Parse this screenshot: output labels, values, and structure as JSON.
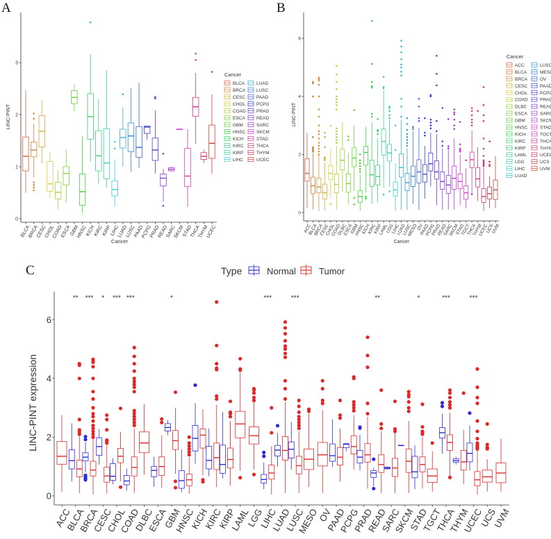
{
  "panels": {
    "a": "A",
    "b": "B",
    "c": "C"
  },
  "chart_data": [
    {
      "type": "boxplot",
      "panel": "A",
      "xlabel": "Cancer",
      "ylabel": "LINC-PINT",
      "ylim": [
        0,
        3.95
      ],
      "yticks": [
        0,
        1,
        2,
        3
      ],
      "grid": false,
      "legend": {
        "title": "Cancer",
        "placement": "right",
        "columns": 2
      },
      "palette": "hue",
      "stats_order": [
        "q1",
        "median",
        "q3",
        "whisker_low",
        "whisker_high"
      ],
      "categories": [
        "BLCA",
        "BRCA",
        "CESC",
        "CHOL",
        "COAD",
        "ESCA",
        "GBM",
        "HNSC",
        "KICH",
        "KIRC",
        "KIRP",
        "LIHC",
        "LUAD",
        "LUSC",
        "PAAD",
        "PCPG",
        "PRAD",
        "READ",
        "SARC",
        "SKCM",
        "STAD",
        "THCA",
        "THYM",
        "UCEC"
      ],
      "boxes": [
        [
          0.92,
          1.2,
          1.57,
          0.5,
          2.47
        ],
        [
          1.19,
          1.32,
          1.47,
          0.8,
          1.83
        ],
        [
          1.38,
          1.68,
          1.98,
          1.06,
          2.28
        ],
        [
          0.53,
          0.67,
          1.1,
          0.4,
          1.28
        ],
        [
          0.38,
          0.51,
          0.7,
          0.18,
          0.93
        ],
        [
          0.65,
          0.87,
          1.0,
          0.31,
          1.33
        ],
        [
          2.21,
          2.33,
          2.46,
          2.07,
          2.58
        ],
        [
          0.26,
          0.52,
          0.86,
          0.12,
          1.59
        ],
        [
          1.53,
          1.96,
          2.4,
          1.1,
          3.16
        ],
        [
          0.92,
          1.21,
          1.69,
          0.67,
          2.3
        ],
        [
          0.77,
          1.07,
          1.73,
          0.6,
          2.85
        ],
        [
          0.44,
          0.56,
          0.73,
          0.23,
          1.14
        ],
        [
          1.36,
          1.56,
          1.72,
          1.0,
          2.14
        ],
        [
          1.29,
          1.59,
          1.84,
          0.9,
          2.51
        ],
        [
          1.18,
          1.37,
          1.77,
          0.98,
          2.61
        ],
        [
          1.64,
          1.76,
          1.78,
          1.52,
          1.78
        ],
        [
          1.12,
          1.32,
          1.55,
          0.87,
          2.08
        ],
        [
          0.63,
          0.78,
          0.86,
          0.33,
          0.96
        ],
        [
          0.92,
          0.95,
          0.98,
          0.9,
          1.0
        ],
        [
          1.72,
          1.72,
          1.72,
          1.72,
          1.72
        ],
        [
          0.62,
          0.82,
          1.35,
          0.23,
          1.72
        ],
        [
          1.97,
          2.15,
          2.33,
          1.44,
          2.8
        ],
        [
          1.14,
          1.2,
          1.27,
          1.07,
          1.33
        ],
        [
          1.16,
          1.45,
          1.8,
          0.87,
          2.39
        ]
      ],
      "outliers": [
        [],
        [
          0.55,
          0.6,
          0.65,
          0.7,
          1.92,
          2.02
        ],
        [],
        [],
        [],
        [],
        [],
        [],
        [
          3.77
        ],
        [],
        [],
        [
          1.35,
          1.48
        ],
        [
          2.39
        ],
        [],
        [],
        [],
        [
          2.31,
          2.34
        ],
        [
          0.25,
          1.25
        ],
        [],
        [],
        [],
        [
          3.05,
          3.17
        ],
        [],
        [
          2.82
        ]
      ]
    },
    {
      "type": "boxplot",
      "panel": "B",
      "xlabel": "Cancer",
      "ylabel": "LINC-PINT",
      "ylim": [
        0,
        6.8
      ],
      "yticks": [
        0,
        2,
        4,
        6
      ],
      "grid": false,
      "legend": {
        "title": "Cancer",
        "placement": "right",
        "columns": 2
      },
      "palette": "hue",
      "stats_order": [
        "q1",
        "median",
        "q3",
        "whisker_low",
        "whisker_high"
      ],
      "categories": [
        "ACC",
        "BLCA",
        "BRCA",
        "CESC",
        "CHOL",
        "COAD",
        "DLBC",
        "ESCA",
        "GBM",
        "HNSC",
        "KICH",
        "KIRC",
        "KIRP",
        "LAML",
        "LGG",
        "LIHC",
        "LUAD",
        "LUSC",
        "MESO",
        "OV",
        "PAAD",
        "PCPG",
        "PRAD",
        "READ",
        "SARC",
        "SKCM",
        "STAD",
        "TGCT",
        "THCA",
        "THYM",
        "UCEC",
        "UCS",
        "UVM"
      ],
      "boxes": [
        [
          1.08,
          1.35,
          1.85,
          0.15,
          2.75
        ],
        [
          0.65,
          0.92,
          1.22,
          0.1,
          2.05
        ],
        [
          0.68,
          0.88,
          1.18,
          0.05,
          1.98
        ],
        [
          0.47,
          0.68,
          0.98,
          0.08,
          1.72
        ],
        [
          1.13,
          1.35,
          1.62,
          0.5,
          2.18
        ],
        [
          0.68,
          0.97,
          1.33,
          0.1,
          2.3
        ],
        [
          1.47,
          1.8,
          2.18,
          0.72,
          3.12
        ],
        [
          0.7,
          1.0,
          1.33,
          0.28,
          2.05
        ],
        [
          1.58,
          1.88,
          2.23,
          0.75,
          3.0
        ],
        [
          0.35,
          0.55,
          0.75,
          0.07,
          1.3
        ],
        [
          1.63,
          2.07,
          2.28,
          0.7,
          2.95
        ],
        [
          0.9,
          1.3,
          1.8,
          0.3,
          3.1
        ],
        [
          0.95,
          1.24,
          1.63,
          0.35,
          2.55
        ],
        [
          1.98,
          2.45,
          2.88,
          0.85,
          4.2
        ],
        [
          1.77,
          2.05,
          2.35,
          0.9,
          3.2
        ],
        [
          0.57,
          0.78,
          1.05,
          0.05,
          1.7
        ],
        [
          1.22,
          1.55,
          2.02,
          0.1,
          3.2
        ],
        [
          0.75,
          1.03,
          1.35,
          0.1,
          2.2
        ],
        [
          0.9,
          1.25,
          1.6,
          0.3,
          2.8
        ],
        [
          1.02,
          1.4,
          1.82,
          0.1,
          2.92
        ],
        [
          1.05,
          1.32,
          1.65,
          0.48,
          2.3
        ],
        [
          1.43,
          1.68,
          2.05,
          0.9,
          2.75
        ],
        [
          1.15,
          1.4,
          1.78,
          0.25,
          2.7
        ],
        [
          0.8,
          1.07,
          1.4,
          0.1,
          2.2
        ],
        [
          0.66,
          0.95,
          1.28,
          0.1,
          2.15
        ],
        [
          0.8,
          1.18,
          1.6,
          0.1,
          2.55
        ],
        [
          0.82,
          1.07,
          1.33,
          0.25,
          2.0
        ],
        [
          0.46,
          0.68,
          0.92,
          0.15,
          1.52
        ],
        [
          1.55,
          1.82,
          2.08,
          0.65,
          2.83
        ],
        [
          0.88,
          1.16,
          1.55,
          0.4,
          2.25
        ],
        [
          0.35,
          0.55,
          0.83,
          0.05,
          1.55
        ],
        [
          0.47,
          0.65,
          0.88,
          0.15,
          1.25
        ],
        [
          0.45,
          0.78,
          1.12,
          0.15,
          1.95
        ]
      ],
      "outliers": [
        [],
        [
          2.1,
          2.15,
          2.2,
          2.25,
          2.6,
          4.0,
          4.45,
          4.5
        ],
        [
          2.0,
          2.1,
          2.2,
          2.3,
          2.4,
          2.55,
          2.7,
          2.8,
          3.0,
          3.3,
          3.55,
          4.0,
          4.4,
          4.55,
          4.6,
          4.65
        ],
        [
          1.8,
          1.85,
          1.9,
          2.25,
          2.6,
          2.75
        ],
        [
          0.3,
          2.98
        ],
        [
          2.4,
          2.5,
          2.6,
          2.7,
          2.8,
          2.9,
          3.55,
          3.7,
          3.8,
          3.9,
          4.0,
          4.25,
          4.5,
          4.75,
          5.05
        ],
        [],
        [
          2.5,
          2.62
        ],
        [
          0.28,
          0.5,
          3.53
        ],
        [
          1.4,
          1.5,
          1.6,
          1.7,
          1.8,
          2.0
        ],
        [
          0.48,
          0.55
        ],
        [
          3.3,
          3.4,
          4.3,
          4.35,
          4.5,
          5.12,
          6.6
        ],
        [
          2.7,
          2.8,
          2.85,
          3.22
        ],
        [
          0.62,
          4.28,
          4.32,
          4.67
        ],
        [
          0.73,
          3.25,
          3.35,
          3.5,
          3.6,
          3.65
        ],
        [
          2.15,
          3.0
        ],
        [
          3.3,
          3.65,
          3.92,
          4.72,
          4.85,
          5.0,
          5.1,
          5.28,
          5.52,
          5.72,
          5.92
        ],
        [
          2.3,
          2.4,
          2.5,
          2.6,
          2.7,
          2.85,
          3.05,
          3.25
        ],
        [
          2.88,
          2.95
        ],
        [
          3.15,
          3.25,
          3.65,
          3.92
        ],
        [
          2.65,
          2.75,
          3.25
        ],
        [
          2.9,
          3.0,
          3.1,
          3.2,
          4.0,
          4.05
        ],
        [
          2.8,
          3.15,
          4.38,
          4.78,
          5.4
        ],
        [
          2.3,
          2.45,
          3.6
        ],
        [
          2.2,
          2.28,
          3.22
        ],
        [
          2.88,
          3.0,
          3.2,
          3.38,
          3.45,
          3.55
        ],
        [
          2.1,
          2.15,
          2.2,
          2.35,
          3.12
        ],
        [
          1.8
        ],
        [
          0.63,
          3.0,
          3.1,
          3.2,
          3.35,
          3.5,
          3.6
        ],
        [
          3.5
        ],
        [
          1.6,
          1.65,
          1.7,
          1.75,
          1.8,
          1.95,
          2.2,
          2.55,
          3.15,
          3.35,
          3.7,
          4.32
        ],
        [
          1.6,
          1.65,
          1.75,
          2.45
        ],
        []
      ]
    },
    {
      "type": "boxplot",
      "panel": "C",
      "xlabel": "",
      "ylabel": "LINC-PINT expression",
      "ylim": [
        0,
        6.8
      ],
      "yticks": [
        0,
        2,
        4,
        6
      ],
      "grid": false,
      "legend": {
        "title": "Type",
        "placement": "top",
        "items": [
          "Normal",
          "Tumor"
        ]
      },
      "colors": {
        "Normal": "#2b2bd6",
        "Tumor": "#e02828"
      },
      "categories": [
        "ACC",
        "BLCA",
        "BRCA",
        "CESC",
        "CHOL",
        "COAD",
        "DLBC",
        "ESCA",
        "GBM",
        "HNSC",
        "KICH",
        "KIRC",
        "KIRP",
        "LAML",
        "LGG",
        "LIHC",
        "LUAD",
        "LUSC",
        "MESO",
        "OV",
        "PAAD",
        "PCPG",
        "PRAD",
        "READ",
        "SARC",
        "SKCM",
        "STAD",
        "TGCT",
        "THCA",
        "THYM",
        "UCEC",
        "UCS",
        "UVM"
      ],
      "significance": [
        "",
        "**",
        "***",
        "*",
        "***",
        "***",
        "",
        "",
        "*",
        "",
        "",
        "",
        "",
        "",
        "",
        "***",
        "",
        "***",
        "",
        "",
        "",
        "",
        "",
        "**",
        "",
        "",
        "*",
        "",
        "***",
        "",
        "***",
        "",
        ""
      ],
      "series": [
        {
          "name": "Normal",
          "source_panel": "A"
        },
        {
          "name": "Tumor",
          "source_panel": "B"
        }
      ]
    }
  ]
}
